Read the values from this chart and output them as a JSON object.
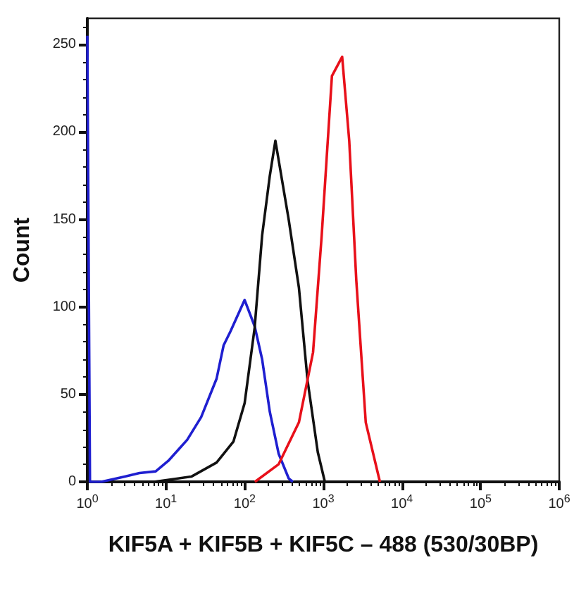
{
  "chart_data": {
    "type": "line",
    "xlabel": "KIF5A + KIF5B + KIF5C – 488 (530/30BP)",
    "ylabel": "Count",
    "log": "x",
    "xlim": [
      1,
      1000000
    ],
    "xticks": [
      {
        "value": 1,
        "label": "10$^{0}$"
      },
      {
        "value": 10,
        "label": "10$^{1}$"
      },
      {
        "value": 100,
        "label": "10$^{2}$"
      },
      {
        "value": 1000,
        "label": "10$^{3}$"
      },
      {
        "value": 10000,
        "label": "10$^{4}$"
      },
      {
        "value": 100000,
        "label": "10$^{5}$"
      },
      {
        "value": 1000000,
        "label": "10$^{6}$"
      }
    ],
    "ylim": [
      0,
      265
    ],
    "yticks": [
      0,
      50,
      100,
      150,
      200,
      250
    ],
    "grid": false,
    "marker": "none",
    "line_style": "solid",
    "series": [
      {
        "color": "#1f1fd0",
        "x": [
          1,
          1.08,
          1.5,
          3,
          4.6,
          7.4,
          10.7,
          18.6,
          28,
          44,
          54,
          66,
          100,
          134,
          167,
          209,
          271,
          363,
          410
        ],
        "values": [
          255,
          0,
          0,
          3,
          5,
          6,
          12,
          24,
          37,
          59,
          78,
          86,
          104,
          89,
          70,
          40,
          16,
          2,
          0
        ]
      },
      {
        "color": "#111111",
        "x": [
          7,
          21,
          44,
          72,
          100,
          134,
          167,
          209,
          246,
          363,
          490,
          631,
          851,
          1047
        ],
        "values": [
          0,
          3,
          11,
          23,
          45,
          88,
          141,
          175,
          195,
          150,
          111,
          58,
          17,
          0
        ]
      },
      {
        "color": "#e8101a",
        "x": [
          135,
          270,
          490,
          741,
          955,
          1288,
          1738,
          2138,
          2630,
          3467,
          5248
        ],
        "values": [
          0,
          10,
          34,
          74,
          141,
          232,
          243,
          195,
          115,
          34,
          0
        ]
      }
    ]
  }
}
